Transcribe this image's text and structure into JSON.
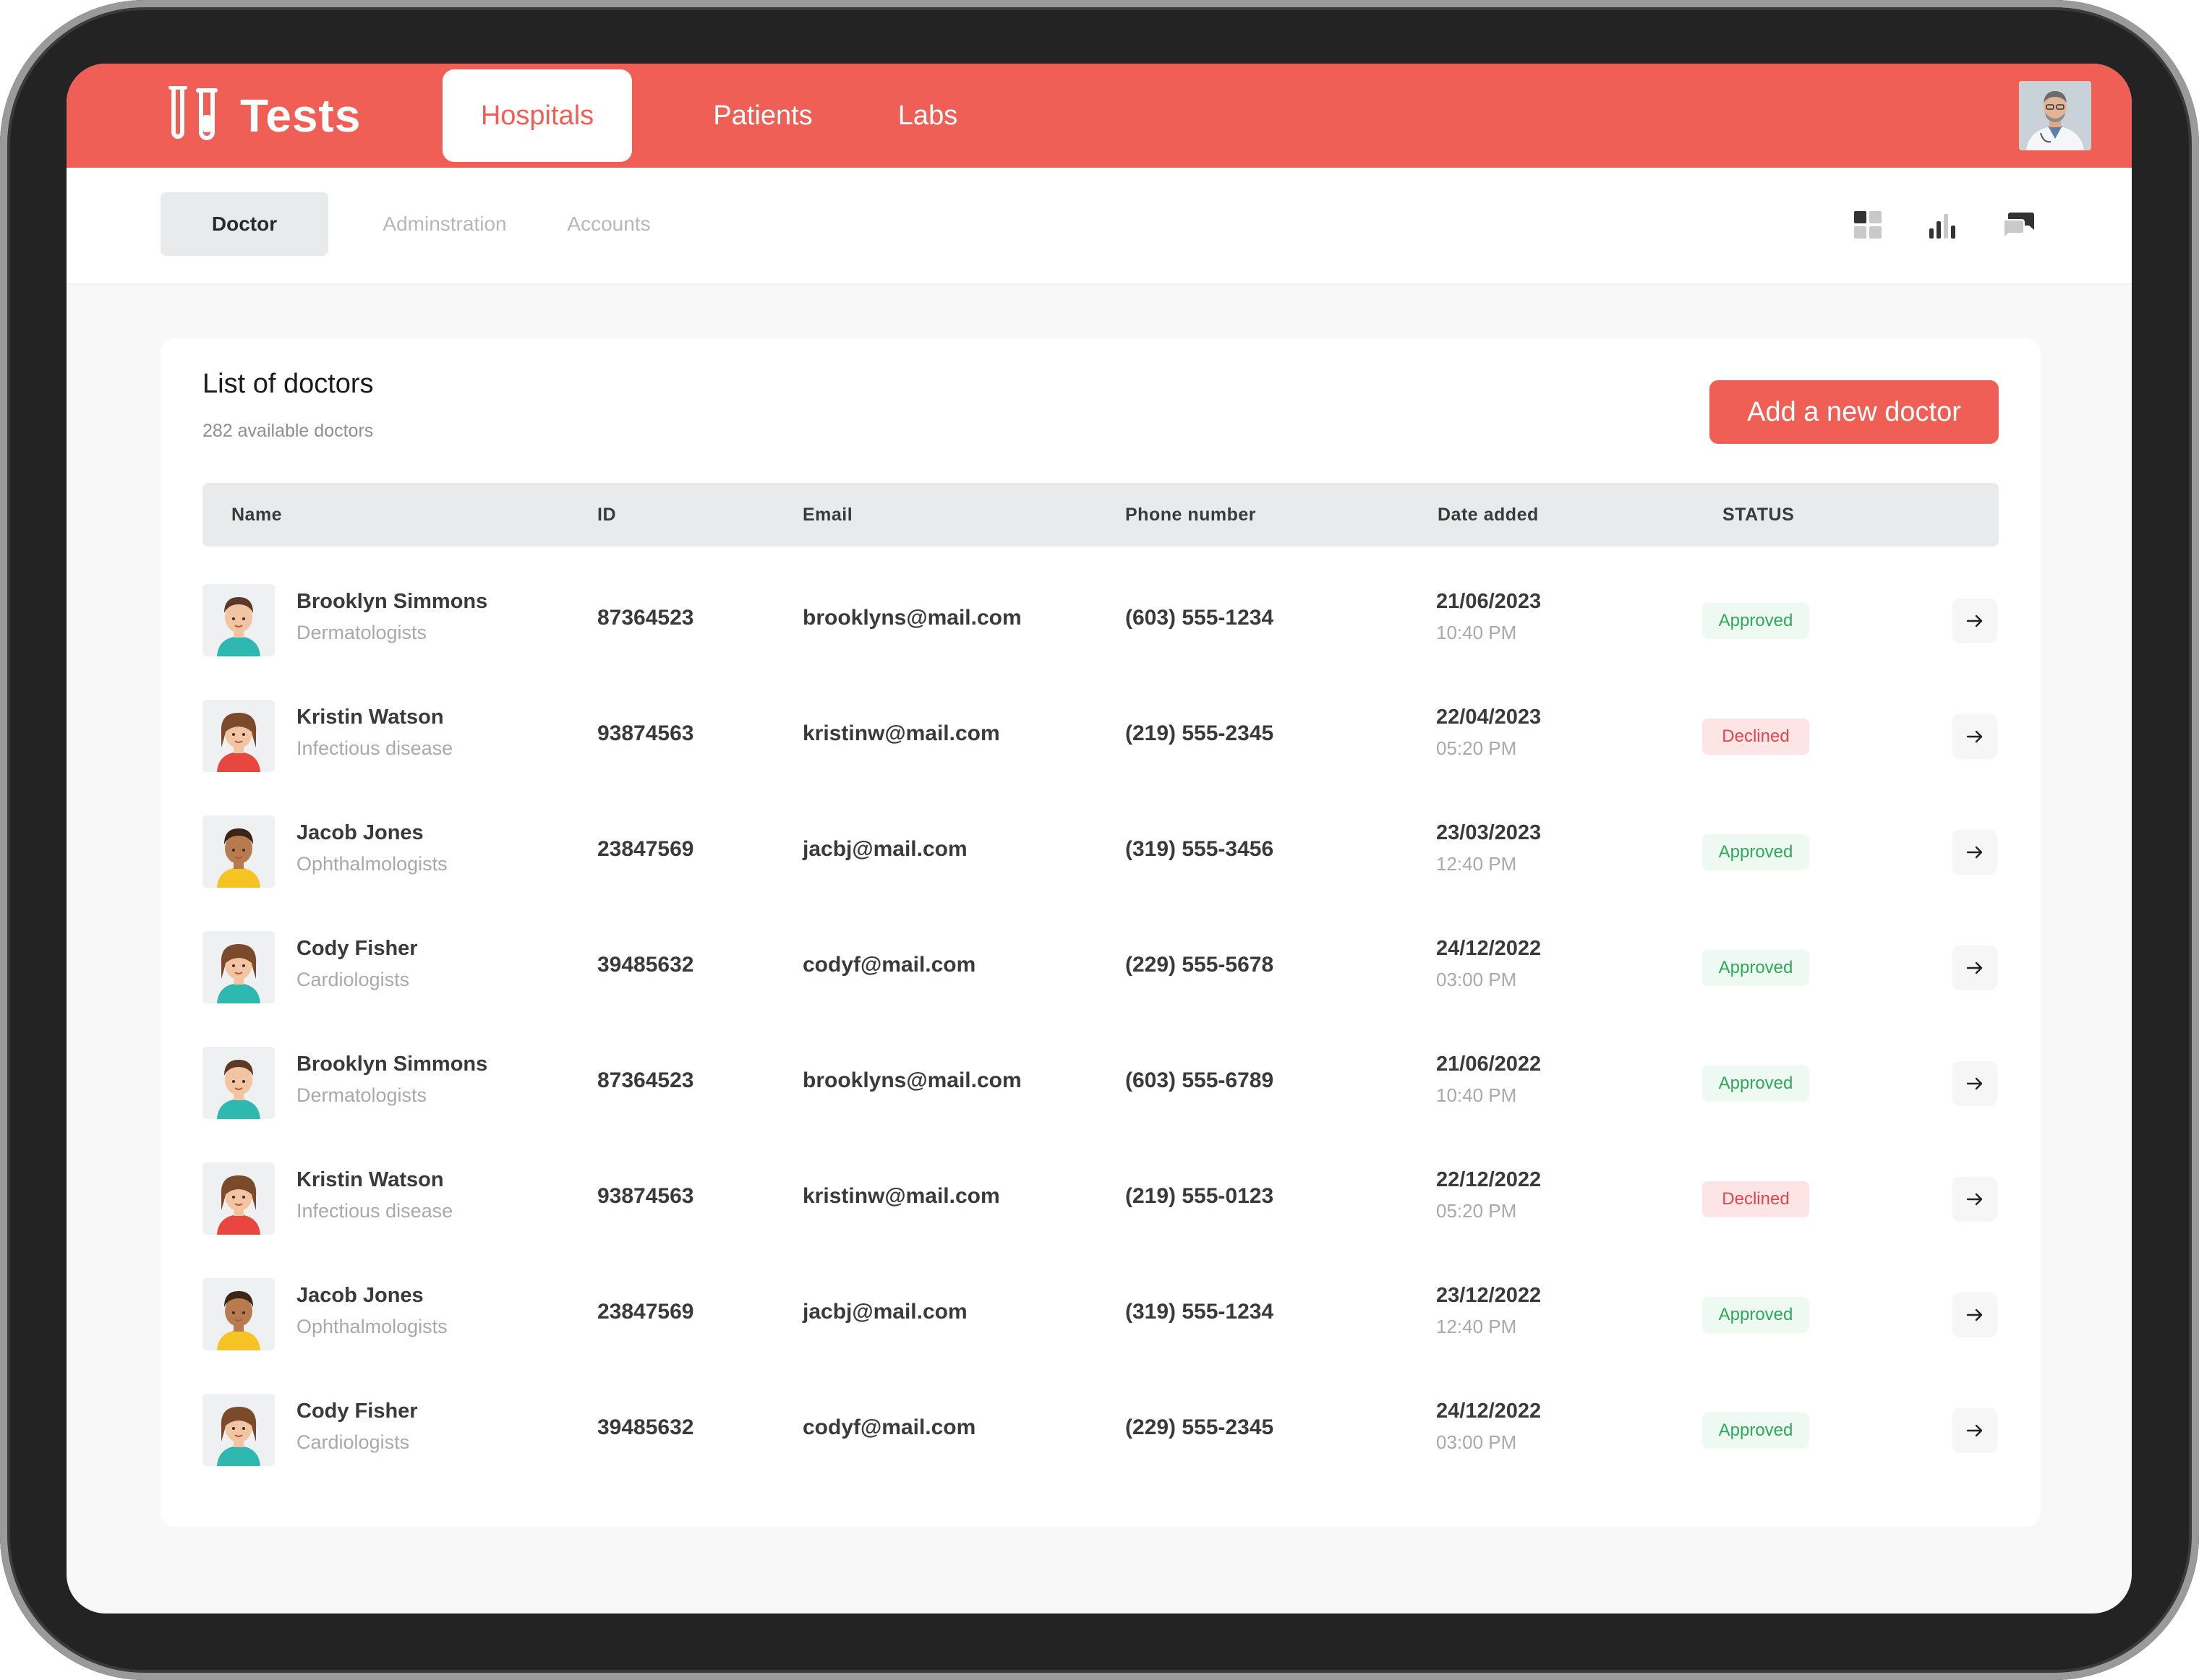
{
  "app": {
    "name": "Tests",
    "nav": [
      {
        "label": "Hospitals",
        "active": true
      },
      {
        "label": "Patients",
        "active": false
      },
      {
        "label": "Labs",
        "active": false
      }
    ]
  },
  "subnav": [
    {
      "label": "Doctor",
      "active": true
    },
    {
      "label": "Adminstration",
      "active": false
    },
    {
      "label": "Accounts",
      "active": false
    }
  ],
  "toolbar_icons": [
    "grid-icon",
    "bar-chart-icon",
    "chat-icon"
  ],
  "list": {
    "title": "List of doctors",
    "subtitle": "282 available doctors",
    "add_label": "Add a new doctor",
    "columns": [
      "Name",
      "ID",
      "Email",
      "Phone number",
      "Date added",
      "STATUS"
    ],
    "rows": [
      {
        "name": "Brooklyn Simmons",
        "specialty": "Dermatologists",
        "id": "87364523",
        "email": "brooklyns@mail.com",
        "phone": "(603) 555-1234",
        "date": "21/06/2023",
        "time": "10:40 PM",
        "status": "Approved",
        "avatar": "boy"
      },
      {
        "name": "Kristin Watson",
        "specialty": "Infectious disease",
        "id": "93874563",
        "email": "kristinw@mail.com",
        "phone": "(219) 555-2345",
        "date": "22/04/2023",
        "time": "05:20 PM",
        "status": "Declined",
        "avatar": "girl-red"
      },
      {
        "name": "Jacob Jones",
        "specialty": "Ophthalmologists",
        "id": "23847569",
        "email": "jacbj@mail.com",
        "phone": "(319) 555-3456",
        "date": "23/03/2023",
        "time": "12:40 PM",
        "status": "Approved",
        "avatar": "boy-yellow"
      },
      {
        "name": "Cody Fisher",
        "specialty": "Cardiologists",
        "id": "39485632",
        "email": "codyf@mail.com",
        "phone": "(229) 555-5678",
        "date": "24/12/2022",
        "time": "03:00 PM",
        "status": "Approved",
        "avatar": "girl-teal"
      },
      {
        "name": "Brooklyn Simmons",
        "specialty": "Dermatologists",
        "id": "87364523",
        "email": "brooklyns@mail.com",
        "phone": "(603) 555-6789",
        "date": "21/06/2022",
        "time": "10:40 PM",
        "status": "Approved",
        "avatar": "boy"
      },
      {
        "name": "Kristin Watson",
        "specialty": "Infectious disease",
        "id": "93874563",
        "email": "kristinw@mail.com",
        "phone": "(219) 555-0123",
        "date": "22/12/2022",
        "time": "05:20 PM",
        "status": "Declined",
        "avatar": "girl-red"
      },
      {
        "name": "Jacob Jones",
        "specialty": "Ophthalmologists",
        "id": "23847569",
        "email": "jacbj@mail.com",
        "phone": "(319) 555-1234",
        "date": "23/12/2022",
        "time": "12:40 PM",
        "status": "Approved",
        "avatar": "boy-yellow"
      },
      {
        "name": "Cody Fisher",
        "specialty": "Cardiologists",
        "id": "39485632",
        "email": "codyf@mail.com",
        "phone": "(229) 555-2345",
        "date": "24/12/2022",
        "time": "03:00 PM",
        "status": "Approved",
        "avatar": "girl-teal"
      }
    ]
  },
  "colors": {
    "brand": "#f05f55",
    "approved_text": "#2eaa5b",
    "approved_bg": "#eef9f1",
    "declined_text": "#e0464c",
    "declined_bg": "#fde5e6"
  }
}
